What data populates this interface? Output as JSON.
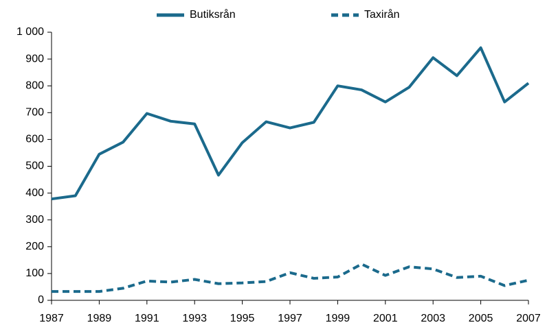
{
  "chart_data": {
    "type": "line",
    "x": [
      1987,
      1988,
      1989,
      1990,
      1991,
      1992,
      1993,
      1994,
      1995,
      1996,
      1997,
      1998,
      1999,
      2000,
      2001,
      2002,
      2003,
      2004,
      2005,
      2006,
      2007
    ],
    "series": [
      {
        "name": "Butiksrån",
        "color": "#1b6a8c",
        "dash": false,
        "values": [
          378,
          390,
          545,
          590,
          697,
          668,
          658,
          467,
          588,
          666,
          643,
          664,
          800,
          785,
          740,
          795,
          905,
          838,
          942,
          740,
          810
        ]
      },
      {
        "name": "Taxirån",
        "color": "#1b6a8c",
        "dash": true,
        "values": [
          33,
          33,
          33,
          45,
          72,
          68,
          78,
          62,
          65,
          70,
          103,
          82,
          87,
          135,
          93,
          125,
          117,
          85,
          90,
          55,
          75
        ]
      }
    ],
    "xlim": [
      1987,
      2007
    ],
    "xticks": [
      1987,
      1989,
      1991,
      1993,
      1995,
      1997,
      1999,
      2001,
      2003,
      2005,
      2007
    ],
    "ylim": [
      0,
      1000
    ],
    "yticks": [
      0,
      100,
      200,
      300,
      400,
      500,
      600,
      700,
      800,
      900,
      {
        "value": 1000,
        "label": "1 000"
      }
    ],
    "grid": false,
    "legend": "top"
  }
}
